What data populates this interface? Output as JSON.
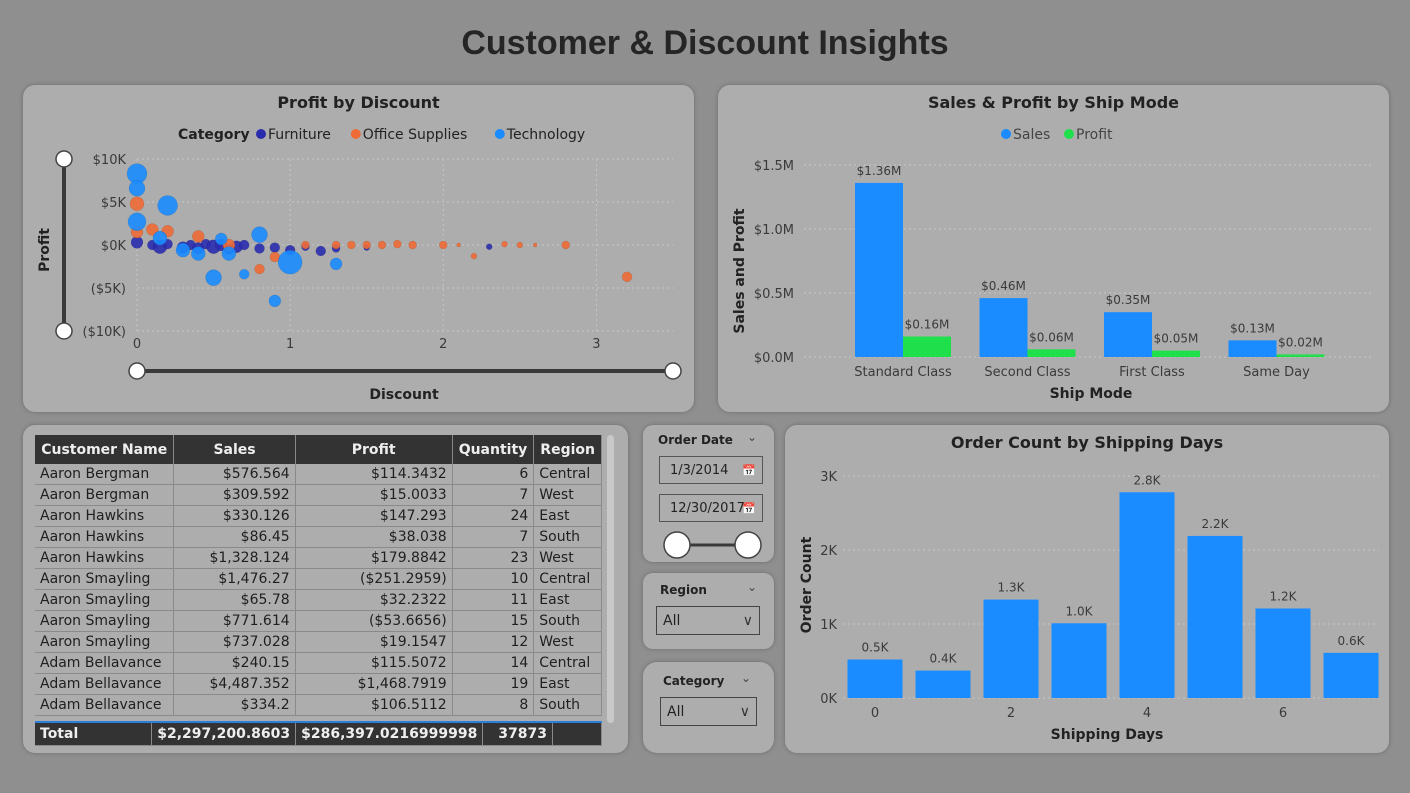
{
  "title": "Customer & Discount Insights",
  "scatter": {
    "title": "Profit by Discount",
    "legend_label": "Category",
    "legend": [
      {
        "name": "Furniture",
        "color": "#2a2cae"
      },
      {
        "name": "Office Supplies",
        "color": "#ee6a36"
      },
      {
        "name": "Technology",
        "color": "#1a8cff"
      }
    ],
    "ylabel": "Profit",
    "xlabel": "Discount",
    "yticks": [
      "$10K",
      "$5K",
      "$0K",
      "($5K)",
      "($10K)"
    ],
    "xticks": [
      "0",
      "1",
      "2",
      "3"
    ]
  },
  "ship_mode": {
    "title": "Sales & Profit by Ship Mode",
    "legend": [
      {
        "name": "Sales",
        "color": "#1a8cff"
      },
      {
        "name": "Profit",
        "color": "#1fe04a"
      }
    ],
    "ylabel": "Sales and Profit",
    "xlabel": "Ship Mode",
    "yticks": [
      "$1.5M",
      "$1.0M",
      "$0.5M",
      "$0.0M"
    ]
  },
  "shipping_days": {
    "title": "Order Count by Shipping Days",
    "ylabel": "Order Count",
    "xlabel": "Shipping Days",
    "yticks": [
      "3K",
      "2K",
      "1K",
      "0K"
    ],
    "xticks": [
      "0",
      "2",
      "4",
      "6"
    ]
  },
  "table": {
    "columns": [
      "Customer Name",
      "Sales",
      "Profit",
      "Quantity",
      "Region"
    ],
    "rows": [
      [
        "Aaron Bergman",
        "$576.564",
        "$114.3432",
        "6",
        "Central"
      ],
      [
        "Aaron Bergman",
        "$309.592",
        "$15.0033",
        "7",
        "West"
      ],
      [
        "Aaron Hawkins",
        "$330.126",
        "$147.293",
        "24",
        "East"
      ],
      [
        "Aaron Hawkins",
        "$86.45",
        "$38.038",
        "7",
        "South"
      ],
      [
        "Aaron Hawkins",
        "$1,328.124",
        "$179.8842",
        "23",
        "West"
      ],
      [
        "Aaron Smayling",
        "$1,476.27",
        "($251.2959)",
        "10",
        "Central"
      ],
      [
        "Aaron Smayling",
        "$65.78",
        "$32.2322",
        "11",
        "East"
      ],
      [
        "Aaron Smayling",
        "$771.614",
        "($53.6656)",
        "15",
        "South"
      ],
      [
        "Aaron Smayling",
        "$737.028",
        "$19.1547",
        "12",
        "West"
      ],
      [
        "Adam Bellavance",
        "$240.15",
        "$115.5072",
        "14",
        "Central"
      ],
      [
        "Adam Bellavance",
        "$4,487.352",
        "$1,468.7919",
        "19",
        "East"
      ],
      [
        "Adam Bellavance",
        "$334.2",
        "$106.5112",
        "8",
        "South"
      ]
    ],
    "total": [
      "Total",
      "$2,297,200.8603",
      "$286,397.0216999998",
      "37873",
      ""
    ]
  },
  "order_date_slicer": {
    "title": "Order Date",
    "start": "1/3/2014",
    "end": "12/30/2017"
  },
  "region_slicer": {
    "title": "Region",
    "value": "All"
  },
  "category_slicer": {
    "title": "Category",
    "value": "All"
  },
  "chart_data": [
    {
      "type": "scatter",
      "title": "Profit by Discount",
      "xlabel": "Discount",
      "ylabel": "Profit",
      "xlim": [
        0,
        3.5
      ],
      "ylim": [
        -10000,
        10000
      ],
      "series": [
        {
          "name": "Furniture",
          "color": "#2a2cae",
          "points": [
            {
              "x": 0.0,
              "y": 300,
              "s": 6
            },
            {
              "x": 0.1,
              "y": 0,
              "s": 5
            },
            {
              "x": 0.15,
              "y": -200,
              "s": 7
            },
            {
              "x": 0.2,
              "y": 100,
              "s": 5
            },
            {
              "x": 0.3,
              "y": -300,
              "s": 6
            },
            {
              "x": 0.35,
              "y": 0,
              "s": 5
            },
            {
              "x": 0.4,
              "y": -400,
              "s": 6
            },
            {
              "x": 0.45,
              "y": 100,
              "s": 5
            },
            {
              "x": 0.5,
              "y": -200,
              "s": 7
            },
            {
              "x": 0.55,
              "y": 0,
              "s": 6
            },
            {
              "x": 0.6,
              "y": -500,
              "s": 5
            },
            {
              "x": 0.65,
              "y": -200,
              "s": 6
            },
            {
              "x": 0.7,
              "y": 0,
              "s": 5
            },
            {
              "x": 0.8,
              "y": -400,
              "s": 5
            },
            {
              "x": 0.9,
              "y": -300,
              "s": 5
            },
            {
              "x": 1.0,
              "y": -600,
              "s": 5
            },
            {
              "x": 1.1,
              "y": -200,
              "s": 4
            },
            {
              "x": 1.2,
              "y": -700,
              "s": 5
            },
            {
              "x": 1.3,
              "y": -400,
              "s": 4
            },
            {
              "x": 1.5,
              "y": -300,
              "s": 3
            },
            {
              "x": 2.3,
              "y": -200,
              "s": 3
            }
          ]
        },
        {
          "name": "Office Supplies",
          "color": "#ee6a36",
          "points": [
            {
              "x": 0.0,
              "y": 4800,
              "s": 7
            },
            {
              "x": 0.0,
              "y": 1500,
              "s": 6
            },
            {
              "x": 0.1,
              "y": 1800,
              "s": 6
            },
            {
              "x": 0.2,
              "y": 1600,
              "s": 6
            },
            {
              "x": 0.4,
              "y": 1000,
              "s": 6
            },
            {
              "x": 0.6,
              "y": 0,
              "s": 6
            },
            {
              "x": 0.8,
              "y": -2800,
              "s": 5
            },
            {
              "x": 0.9,
              "y": -1400,
              "s": 5
            },
            {
              "x": 1.1,
              "y": 0,
              "s": 4
            },
            {
              "x": 1.3,
              "y": 0,
              "s": 4
            },
            {
              "x": 1.4,
              "y": 0,
              "s": 4
            },
            {
              "x": 1.5,
              "y": 0,
              "s": 4
            },
            {
              "x": 1.6,
              "y": 0,
              "s": 4
            },
            {
              "x": 1.7,
              "y": 100,
              "s": 4
            },
            {
              "x": 1.8,
              "y": 0,
              "s": 4
            },
            {
              "x": 2.0,
              "y": 0,
              "s": 4
            },
            {
              "x": 2.1,
              "y": 0,
              "s": 2
            },
            {
              "x": 2.2,
              "y": -1300,
              "s": 3
            },
            {
              "x": 2.4,
              "y": 100,
              "s": 3
            },
            {
              "x": 2.5,
              "y": 0,
              "s": 3
            },
            {
              "x": 2.6,
              "y": 0,
              "s": 2
            },
            {
              "x": 2.8,
              "y": 0,
              "s": 4
            },
            {
              "x": 3.2,
              "y": -3700,
              "s": 5
            }
          ]
        },
        {
          "name": "Technology",
          "color": "#1a8cff",
          "points": [
            {
              "x": 0.0,
              "y": 8300,
              "s": 10
            },
            {
              "x": 0.0,
              "y": 6600,
              "s": 8
            },
            {
              "x": 0.0,
              "y": 2700,
              "s": 9
            },
            {
              "x": 0.2,
              "y": 4600,
              "s": 10
            },
            {
              "x": 0.15,
              "y": 800,
              "s": 7
            },
            {
              "x": 0.3,
              "y": -600,
              "s": 7
            },
            {
              "x": 0.4,
              "y": -1000,
              "s": 7
            },
            {
              "x": 0.5,
              "y": -3800,
              "s": 8
            },
            {
              "x": 0.6,
              "y": -1000,
              "s": 7
            },
            {
              "x": 0.7,
              "y": -3400,
              "s": 5
            },
            {
              "x": 0.8,
              "y": 1200,
              "s": 8
            },
            {
              "x": 0.9,
              "y": -6500,
              "s": 6
            },
            {
              "x": 1.0,
              "y": -2000,
              "s": 12
            },
            {
              "x": 1.3,
              "y": -2200,
              "s": 6
            },
            {
              "x": 0.55,
              "y": 700,
              "s": 6
            }
          ]
        }
      ]
    },
    {
      "type": "bar",
      "title": "Sales & Profit by Ship Mode",
      "xlabel": "Ship Mode",
      "ylabel": "Sales and Profit",
      "categories": [
        "Standard Class",
        "Second Class",
        "First Class",
        "Same Day"
      ],
      "ylim": [
        0,
        1.5
      ],
      "series": [
        {
          "name": "Sales",
          "color": "#1a8cff",
          "values": [
            1.36,
            0.46,
            0.35,
            0.13
          ],
          "labels": [
            "$1.36M",
            "$0.46M",
            "$0.35M",
            "$0.13M"
          ]
        },
        {
          "name": "Profit",
          "color": "#1fe04a",
          "values": [
            0.16,
            0.06,
            0.05,
            0.02
          ],
          "labels": [
            "$0.16M",
            "$0.06M",
            "$0.05M",
            "$0.02M"
          ]
        }
      ]
    },
    {
      "type": "bar",
      "title": "Order Count by Shipping Days",
      "xlabel": "Shipping Days",
      "ylabel": "Order Count",
      "x": [
        0,
        1,
        2,
        3,
        4,
        5,
        6,
        7
      ],
      "values": [
        520,
        370,
        1330,
        1010,
        2780,
        2190,
        1210,
        610
      ],
      "labels": [
        "0.5K",
        "0.4K",
        "1.3K",
        "1.0K",
        "2.8K",
        "2.2K",
        "1.2K",
        "0.6K"
      ],
      "ylim": [
        0,
        3000
      ],
      "color": "#1a8cff"
    }
  ]
}
